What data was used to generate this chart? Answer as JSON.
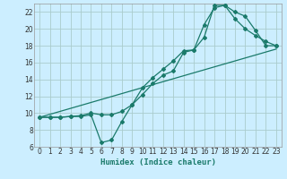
{
  "xlabel": "Humidex (Indice chaleur)",
  "bg_color": "#cceeff",
  "grid_color": "#aacccc",
  "line_color": "#1a7a6a",
  "xlim": [
    -0.5,
    23.5
  ],
  "ylim": [
    6,
    23
  ],
  "xticks": [
    0,
    1,
    2,
    3,
    4,
    5,
    6,
    7,
    8,
    9,
    10,
    11,
    12,
    13,
    14,
    15,
    16,
    17,
    18,
    19,
    20,
    21,
    22,
    23
  ],
  "yticks": [
    6,
    8,
    10,
    12,
    14,
    16,
    18,
    20,
    22
  ],
  "line1_x": [
    0,
    23
  ],
  "line1_y": [
    9.5,
    17.6
  ],
  "line2_x": [
    0,
    1,
    2,
    3,
    4,
    5,
    6,
    7,
    8,
    9,
    10,
    11,
    12,
    13,
    14,
    15,
    16,
    17,
    18,
    19,
    20,
    21,
    22,
    23
  ],
  "line2_y": [
    9.5,
    9.5,
    9.5,
    9.6,
    9.6,
    9.8,
    6.5,
    6.8,
    9.0,
    11.0,
    13.0,
    14.2,
    15.2,
    16.2,
    17.4,
    17.5,
    19.0,
    22.8,
    22.8,
    21.2,
    20.0,
    19.2,
    18.5,
    18.0
  ],
  "line3_x": [
    0,
    1,
    2,
    3,
    4,
    5,
    6,
    7,
    8,
    9,
    10,
    11,
    12,
    13,
    14,
    15,
    16,
    17,
    18,
    19,
    20,
    21,
    22,
    23
  ],
  "line3_y": [
    9.5,
    9.5,
    9.5,
    9.6,
    9.7,
    10.0,
    9.8,
    9.8,
    10.2,
    11.0,
    12.2,
    13.5,
    14.5,
    15.0,
    17.2,
    17.5,
    20.5,
    22.5,
    22.8,
    22.0,
    21.5,
    19.8,
    18.0,
    18.0
  ]
}
